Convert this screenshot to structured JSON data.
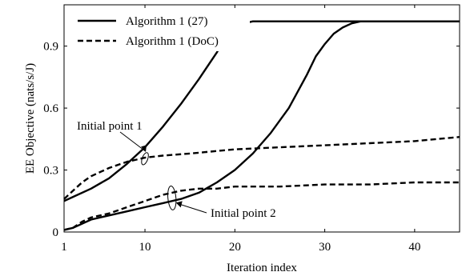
{
  "chart_data": {
    "type": "line",
    "xlabel": "Iteration index",
    "ylabel": "EE Objective (nats/s/J)",
    "xlim": [
      1,
      45
    ],
    "ylim": [
      0,
      1.1
    ],
    "xticks": [
      1,
      10,
      20,
      30,
      40
    ],
    "yticks": [
      0,
      0.3,
      0.6,
      0.9
    ],
    "ytick_labels": [
      "0",
      "0.3",
      "0.6",
      "0.9"
    ],
    "xtick_labels": [
      "1",
      "10",
      "20",
      "30",
      "40"
    ],
    "grid": false,
    "legend_position": "top-left",
    "legend": [
      {
        "label": "Algorithm 1 (27)",
        "style": "solid"
      },
      {
        "label": "Algorithm 1 (DoC)",
        "style": "dashed"
      }
    ],
    "series": [
      {
        "name": "Algorithm 1 (27)",
        "style": "solid",
        "x": [
          1,
          2,
          4,
          6,
          8,
          10,
          12,
          14,
          16,
          18,
          19,
          20,
          21,
          22,
          23,
          26,
          30,
          35,
          40,
          45
        ],
        "y": [
          0.15,
          0.17,
          0.21,
          0.26,
          0.33,
          0.41,
          0.51,
          0.62,
          0.74,
          0.87,
          0.94,
          0.99,
          1.01,
          1.02,
          1.02,
          1.02,
          1.02,
          1.02,
          1.02,
          1.02
        ]
      },
      {
        "name": "Algorithm 1 (DoC)",
        "style": "dashed",
        "x": [
          1,
          2,
          3,
          4,
          6,
          8,
          10,
          12,
          15,
          20,
          25,
          30,
          35,
          40,
          45
        ],
        "y": [
          0.16,
          0.2,
          0.24,
          0.27,
          0.31,
          0.34,
          0.36,
          0.37,
          0.38,
          0.4,
          0.41,
          0.42,
          0.43,
          0.44,
          0.46
        ]
      },
      {
        "name": "Algorithm 1 (27)",
        "style": "solid",
        "x": [
          1,
          2,
          3,
          4,
          6,
          8,
          10,
          12,
          14,
          16,
          18,
          20,
          22,
          24,
          26,
          27,
          28,
          29,
          30,
          31,
          32,
          33,
          34,
          35,
          36,
          40,
          45
        ],
        "y": [
          0.01,
          0.02,
          0.04,
          0.06,
          0.08,
          0.1,
          0.12,
          0.14,
          0.16,
          0.19,
          0.24,
          0.3,
          0.38,
          0.48,
          0.6,
          0.68,
          0.76,
          0.85,
          0.91,
          0.96,
          0.99,
          1.01,
          1.02,
          1.02,
          1.02,
          1.02,
          1.02
        ]
      },
      {
        "name": "Algorithm 1 (DoC)",
        "style": "dashed",
        "x": [
          1,
          2,
          3,
          4,
          6,
          8,
          10,
          12,
          14,
          16,
          18,
          20,
          25,
          30,
          35,
          40,
          45
        ],
        "y": [
          0.01,
          0.02,
          0.05,
          0.07,
          0.09,
          0.12,
          0.15,
          0.18,
          0.2,
          0.21,
          0.21,
          0.22,
          0.22,
          0.23,
          0.23,
          0.24,
          0.24
        ]
      }
    ],
    "annotations": [
      {
        "text": "Initial point 1",
        "target_x": 10,
        "target_y": 0.355
      },
      {
        "text": "Initial point 2",
        "target_x": 13,
        "target_y": 0.165
      }
    ]
  }
}
